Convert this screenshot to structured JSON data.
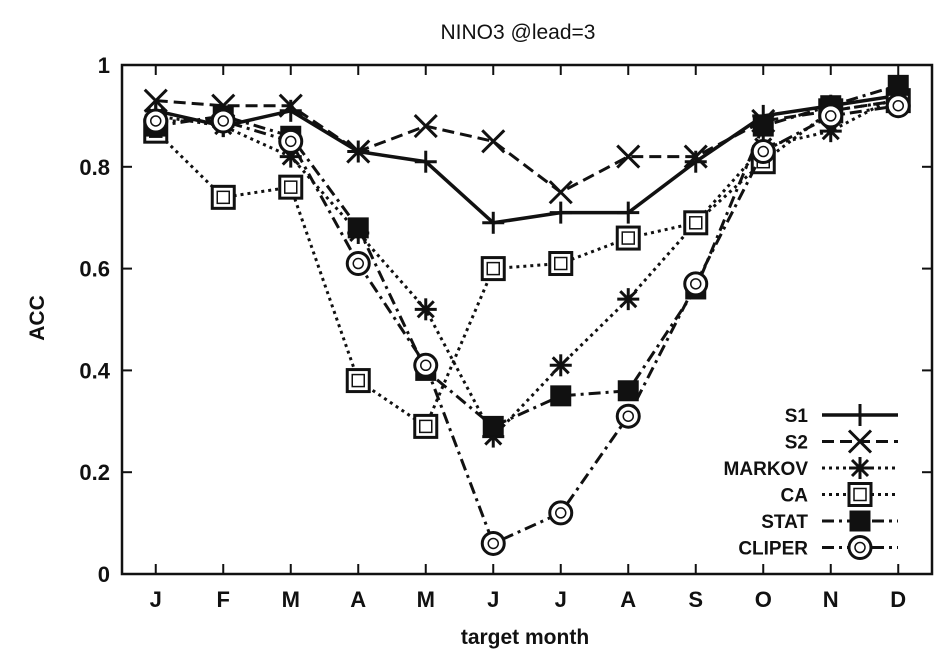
{
  "chart_data": {
    "type": "line",
    "title": "NINO3 @lead=3",
    "xlabel": "target month",
    "ylabel": "ACC",
    "categories": [
      "J",
      "F",
      "M",
      "A",
      "M",
      "J",
      "J",
      "A",
      "S",
      "O",
      "N",
      "D"
    ],
    "y_ticks": [
      "0",
      "0.2",
      "0.4",
      "0.6",
      "0.8",
      "1"
    ],
    "ylim": [
      0,
      1
    ],
    "grid": false,
    "legend_position": "bottom-right",
    "series": [
      {
        "name": "S1",
        "marker": "plus",
        "dash": "solid",
        "values": [
          0.91,
          0.88,
          0.91,
          0.83,
          0.81,
          0.69,
          0.71,
          0.71,
          0.81,
          0.9,
          0.92,
          0.94
        ]
      },
      {
        "name": "S2",
        "marker": "x",
        "dash": "dashed",
        "values": [
          0.93,
          0.92,
          0.92,
          0.83,
          0.88,
          0.85,
          0.75,
          0.82,
          0.82,
          0.89,
          0.91,
          0.93
        ]
      },
      {
        "name": "MARKOV",
        "marker": "star",
        "dash": "dotted",
        "values": [
          0.9,
          0.88,
          0.82,
          0.67,
          0.52,
          0.27,
          0.41,
          0.54,
          0.69,
          0.84,
          0.87,
          0.94
        ]
      },
      {
        "name": "CA",
        "marker": "square-open",
        "dash": "dotted",
        "values": [
          0.87,
          0.74,
          0.76,
          0.38,
          0.29,
          0.6,
          0.61,
          0.66,
          0.69,
          0.81,
          0.91,
          0.93
        ]
      },
      {
        "name": "STAT",
        "marker": "square-filled",
        "dash": "dashdot",
        "values": [
          0.88,
          0.9,
          0.86,
          0.68,
          0.4,
          0.29,
          0.35,
          0.36,
          0.56,
          0.88,
          0.92,
          0.96
        ]
      },
      {
        "name": "CLIPER",
        "marker": "circle-open",
        "dash": "dashdot",
        "values": [
          0.89,
          0.89,
          0.85,
          0.61,
          0.41,
          0.06,
          0.12,
          0.31,
          0.57,
          0.83,
          0.9,
          0.92
        ]
      }
    ]
  }
}
